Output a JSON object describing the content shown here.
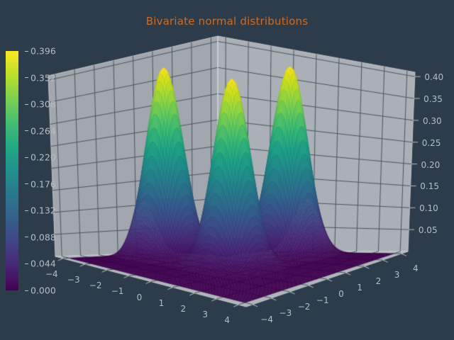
{
  "title": {
    "text": "Bivariate normal distributions"
  },
  "colors": {
    "background": "#2d3c4a",
    "title": "#d2691e",
    "tick_label": "#b6bdc4",
    "grid": "#4a5561",
    "pane_left": "#a2a7ad",
    "pane_right": "#abb0b6",
    "pane_floor": "#b0b5bb",
    "pane_edge": "#ccd1d6"
  },
  "colorbar": {
    "colormap": "viridis",
    "vmin": 0.0,
    "vmax": 0.396,
    "tick_labels": [
      "0.000",
      "0.044",
      "0.088",
      "0.132",
      "0.176",
      "0.220",
      "0.264",
      "0.308",
      "0.352",
      "0.396"
    ]
  },
  "chart_data": {
    "type": "surface",
    "title": "Bivariate normal distributions",
    "description": "3D surface plot of the sum of three bivariate normal density peaks over the x-y plane, viridis colormap, on gray axis panes with dark slate figure background",
    "colormap": "viridis",
    "x_range": [
      -4,
      4
    ],
    "y_range": [
      -4,
      4
    ],
    "xlim": [
      -4.35,
      4.35
    ],
    "ylim": [
      -4.35,
      4.35
    ],
    "zlim": [
      0,
      0.41
    ],
    "x_ticks": [
      -4,
      -3,
      -2,
      -1,
      0,
      1,
      2,
      3,
      4
    ],
    "y_ticks": [
      -4,
      -3,
      -2,
      -1,
      0,
      1,
      2,
      3,
      4
    ],
    "z_ticks": [
      0.05,
      0.1,
      0.15,
      0.2,
      0.25,
      0.3,
      0.35,
      0.4
    ],
    "z_tick_labels": [
      "0.05",
      "0.10",
      "0.15",
      "0.20",
      "0.25",
      "0.30",
      "0.35",
      "0.40"
    ],
    "peak_value": 0.396,
    "components": [
      {
        "mean": [
          0,
          0
        ],
        "sigma": 0.63
      },
      {
        "mean": [
          -3,
          0
        ],
        "sigma": 0.63
      },
      {
        "mean": [
          0,
          3
        ],
        "sigma": 0.63
      }
    ]
  }
}
